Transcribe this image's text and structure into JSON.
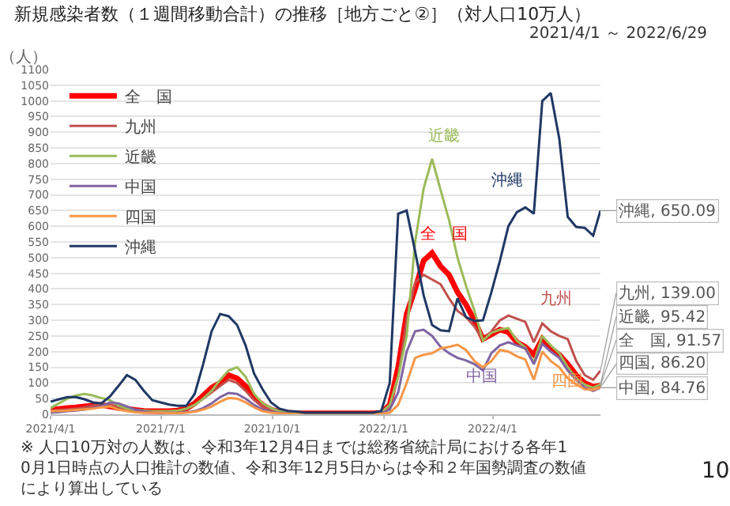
{
  "chart_data": {
    "type": "line",
    "title": "新規感染者数（１週間移動合計）の推移［地方ごと②］（対人口10万人）",
    "subtitle": "2021/4/1 ～ 2022/6/29",
    "ylabel": "（人）",
    "x": [
      "2021-04-01",
      "2021-04-08",
      "2021-04-15",
      "2021-04-22",
      "2021-04-29",
      "2021-05-06",
      "2021-05-13",
      "2021-05-20",
      "2021-05-27",
      "2021-06-03",
      "2021-06-10",
      "2021-06-17",
      "2021-06-24",
      "2021-07-01",
      "2021-07-08",
      "2021-07-15",
      "2021-07-22",
      "2021-07-29",
      "2021-08-05",
      "2021-08-12",
      "2021-08-19",
      "2021-08-26",
      "2021-09-02",
      "2021-09-09",
      "2021-09-16",
      "2021-09-23",
      "2021-09-30",
      "2021-10-07",
      "2021-10-14",
      "2021-10-21",
      "2021-10-28",
      "2021-11-04",
      "2021-11-11",
      "2021-11-18",
      "2021-11-25",
      "2021-12-02",
      "2021-12-09",
      "2021-12-16",
      "2021-12-23",
      "2021-12-30",
      "2022-01-06",
      "2022-01-13",
      "2022-01-20",
      "2022-01-27",
      "2022-02-03",
      "2022-02-10",
      "2022-02-17",
      "2022-02-24",
      "2022-03-03",
      "2022-03-10",
      "2022-03-17",
      "2022-03-24",
      "2022-03-31",
      "2022-04-07",
      "2022-04-14",
      "2022-04-21",
      "2022-04-28",
      "2022-05-05",
      "2022-05-12",
      "2022-05-19",
      "2022-05-26",
      "2022-06-02",
      "2022-06-09",
      "2022-06-16",
      "2022-06-23",
      "2022-06-29"
    ],
    "series": [
      {
        "name": "全　国",
        "color": "#ff0000",
        "values": [
          15,
          17,
          20,
          22,
          25,
          28,
          30,
          25,
          20,
          18,
          14,
          11,
          10,
          10,
          10,
          12,
          18,
          35,
          60,
          85,
          100,
          125,
          115,
          90,
          55,
          30,
          15,
          8,
          5,
          3,
          3,
          3,
          3,
          3,
          3,
          3,
          3,
          3,
          3,
          5,
          30,
          150,
          320,
          400,
          490,
          515,
          472,
          445,
          390,
          350,
          300,
          240,
          255,
          270,
          262,
          230,
          215,
          190,
          240,
          210,
          190,
          160,
          125,
          100,
          88,
          91.57
        ]
      },
      {
        "name": "九州",
        "color": "#c0504d",
        "values": [
          12,
          14,
          16,
          18,
          22,
          28,
          32,
          30,
          22,
          15,
          10,
          8,
          6,
          5,
          5,
          8,
          15,
          30,
          50,
          70,
          90,
          110,
          100,
          75,
          45,
          25,
          12,
          6,
          4,
          2,
          2,
          2,
          2,
          2,
          2,
          2,
          2,
          2,
          2,
          4,
          25,
          120,
          300,
          420,
          445,
          430,
          415,
          370,
          330,
          310,
          280,
          235,
          265,
          300,
          315,
          305,
          295,
          230,
          290,
          265,
          250,
          240,
          170,
          125,
          110,
          139.0
        ]
      },
      {
        "name": "近畿",
        "color": "#9bbb59",
        "values": [
          20,
          35,
          50,
          60,
          65,
          60,
          52,
          45,
          28,
          18,
          14,
          12,
          10,
          10,
          10,
          12,
          18,
          30,
          50,
          75,
          110,
          140,
          150,
          120,
          65,
          35,
          20,
          10,
          5,
          3,
          3,
          3,
          3,
          3,
          3,
          3,
          3,
          3,
          3,
          5,
          30,
          120,
          250,
          550,
          720,
          815,
          716,
          620,
          500,
          410,
          330,
          235,
          260,
          270,
          275,
          235,
          213,
          165,
          250,
          220,
          195,
          150,
          115,
          95,
          85,
          95.42
        ]
      },
      {
        "name": "中国",
        "color": "#8064a2",
        "values": [
          5,
          7,
          10,
          12,
          15,
          20,
          25,
          38,
          35,
          25,
          15,
          10,
          7,
          5,
          5,
          5,
          6,
          10,
          20,
          35,
          55,
          68,
          65,
          50,
          30,
          15,
          8,
          5,
          3,
          2,
          2,
          2,
          2,
          2,
          2,
          2,
          2,
          2,
          2,
          3,
          15,
          70,
          200,
          265,
          270,
          250,
          215,
          195,
          180,
          172,
          160,
          140,
          195,
          220,
          230,
          220,
          210,
          160,
          225,
          200,
          180,
          140,
          110,
          85,
          75,
          84.76
        ]
      },
      {
        "name": "四国",
        "color": "#f79646",
        "values": [
          10,
          11,
          12,
          14,
          16,
          18,
          22,
          25,
          15,
          10,
          6,
          5,
          5,
          5,
          4,
          4,
          5,
          8,
          15,
          25,
          40,
          52,
          50,
          38,
          22,
          10,
          5,
          3,
          2,
          1,
          1,
          1,
          1,
          1,
          1,
          1,
          1,
          1,
          1,
          2,
          5,
          30,
          100,
          180,
          190,
          195,
          210,
          215,
          222,
          205,
          170,
          150,
          170,
          205,
          200,
          185,
          175,
          110,
          200,
          170,
          150,
          115,
          95,
          80,
          78,
          86.2
        ]
      },
      {
        "name": "沖縄",
        "color": "#1f3864",
        "values": [
          40,
          48,
          55,
          55,
          48,
          38,
          35,
          57,
          90,
          125,
          110,
          75,
          45,
          38,
          31,
          27,
          27,
          65,
          160,
          265,
          320,
          313,
          285,
          220,
          130,
          80,
          38,
          18,
          11,
          9,
          5,
          5,
          5,
          5,
          5,
          5,
          5,
          5,
          5,
          10,
          100,
          640,
          650,
          520,
          380,
          285,
          268,
          265,
          370,
          310,
          298,
          300,
          390,
          490,
          600,
          645,
          660,
          640,
          1000,
          1025,
          880,
          630,
          598,
          595,
          570,
          650.09
        ]
      }
    ],
    "xlim": [
      "2021-04-01",
      "2022-06-29"
    ],
    "xticks": [
      {
        "value": "2021-04-01",
        "label": "2021/4/1"
      },
      {
        "value": "2021-07-01",
        "label": "2021/7/1"
      },
      {
        "value": "2021-10-01",
        "label": "2021/10/1"
      },
      {
        "value": "2022-01-01",
        "label": "2022/1/1"
      },
      {
        "value": "2022-04-01",
        "label": "2022/4/1"
      }
    ],
    "ylim": [
      0,
      1100
    ],
    "yticks": [
      0,
      50,
      100,
      150,
      200,
      250,
      300,
      350,
      400,
      450,
      500,
      550,
      600,
      650,
      700,
      750,
      800,
      850,
      900,
      950,
      1000,
      1050,
      1100
    ],
    "grid": "y",
    "legend": "top left",
    "annotations": [
      "※ 人口10万対の人数は、令和3年12月4日までは総務省統計局における各年10月1日時点の人口推計の数値、令和3年12月5日からは令和２年国勢調査の数値により算出している",
      "10",
      "近畿",
      "全　国",
      "沖縄",
      "九州",
      "中国",
      "四国",
      {
        "text": "沖縄, 650.09",
        "x": "2022-06-29",
        "y": 650.09
      },
      {
        "text": "九州, 139.00",
        "x": "2022-06-29",
        "y": 139.0
      },
      {
        "text": "近畿, 95.42",
        "x": "2022-06-29",
        "y": 95.42
      },
      {
        "text": "全　国, 91.57",
        "x": "2022-06-29",
        "y": 91.57
      },
      {
        "text": "四国, 86.20",
        "x": "2022-06-29",
        "y": 86.2
      },
      {
        "text": "中国, 84.76",
        "x": "2022-06-29",
        "y": 84.76
      }
    ]
  }
}
